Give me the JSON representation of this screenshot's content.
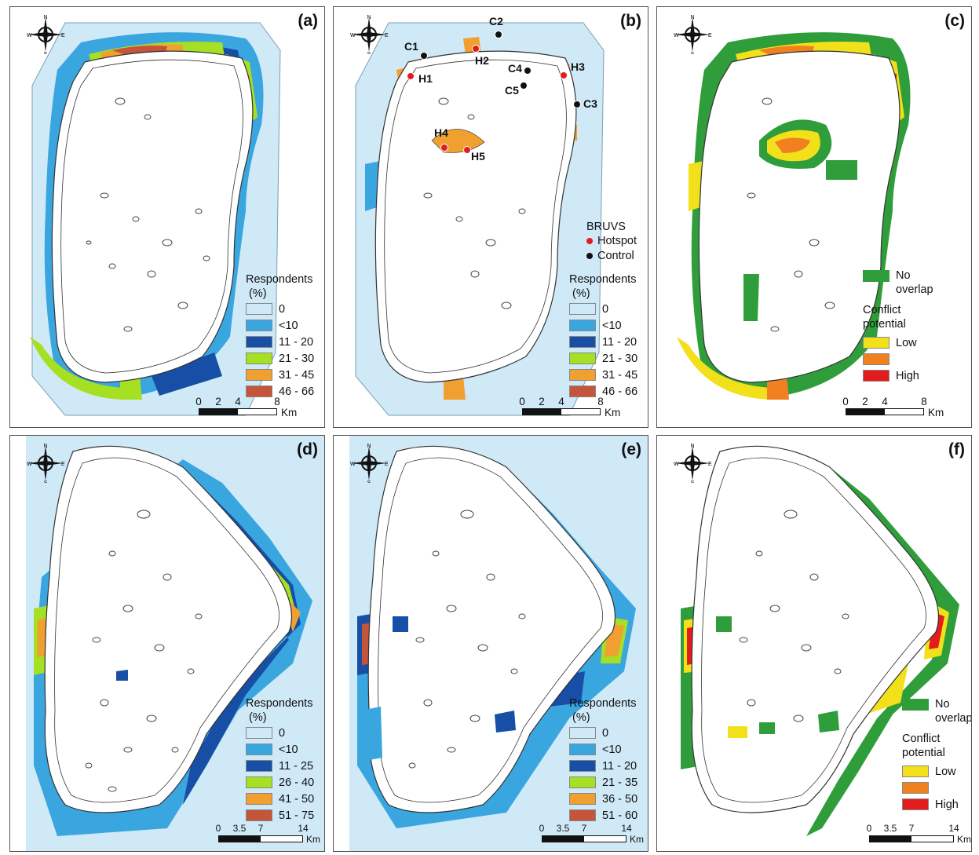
{
  "panels": {
    "a": {
      "label": "(a)"
    },
    "b": {
      "label": "(b)"
    },
    "c": {
      "label": "(c)"
    },
    "d": {
      "label": "(d)"
    },
    "e": {
      "label": "(e)"
    },
    "f": {
      "label": "(f)"
    }
  },
  "compass": {
    "n": "N",
    "s": "S",
    "e": "E",
    "w": "W"
  },
  "legend_a": {
    "title1": "Respondents",
    "title2": "(%)",
    "rows": [
      {
        "label": "0",
        "color": "#cfe9f7"
      },
      {
        "label": "<10",
        "color": "#3aa6e0"
      },
      {
        "label": "11 - 20",
        "color": "#174ea6"
      },
      {
        "label": "21 - 30",
        "color": "#a6e022"
      },
      {
        "label": "31 - 45",
        "color": "#f0a030"
      },
      {
        "label": "46 - 66",
        "color": "#c4553a"
      }
    ]
  },
  "legend_b": {
    "title1": "Respondents",
    "title2": "(%)",
    "rows": [
      {
        "label": "0",
        "color": "#cfe9f7"
      },
      {
        "label": "<10",
        "color": "#3aa6e0"
      },
      {
        "label": "11 - 20",
        "color": "#174ea6"
      },
      {
        "label": "21 - 30",
        "color": "#a6e022"
      },
      {
        "label": "31 - 45",
        "color": "#f0a030"
      },
      {
        "label": "46 - 66",
        "color": "#c4553a"
      }
    ]
  },
  "legend_d": {
    "title1": "Respondents",
    "title2": "(%)",
    "rows": [
      {
        "label": "0",
        "color": "#cfe9f7"
      },
      {
        "label": "<10",
        "color": "#3aa6e0"
      },
      {
        "label": "11 - 25",
        "color": "#174ea6"
      },
      {
        "label": "26 - 40",
        "color": "#a6e022"
      },
      {
        "label": "41 - 50",
        "color": "#f0a030"
      },
      {
        "label": "51 - 75",
        "color": "#c4553a"
      }
    ]
  },
  "legend_e": {
    "title1": "Respondents",
    "title2": "(%)",
    "rows": [
      {
        "label": "0",
        "color": "#cfe9f7"
      },
      {
        "label": "<10",
        "color": "#3aa6e0"
      },
      {
        "label": "11 - 20",
        "color": "#174ea6"
      },
      {
        "label": "21 - 35",
        "color": "#a6e022"
      },
      {
        "label": "36 - 50",
        "color": "#f0a030"
      },
      {
        "label": "51 - 60",
        "color": "#c4553a"
      }
    ]
  },
  "conflict_legend": {
    "no_overlap_1": "No",
    "no_overlap_2": "overlap",
    "no_overlap_color": "#2f9e3a",
    "title1": "Conflict",
    "title2": "potential",
    "low": "Low",
    "low_color": "#f2e01a",
    "mid_color": "#f08020",
    "high": "High",
    "high_color": "#e31b1b"
  },
  "bruvs": {
    "title": "BRUVS",
    "hotspot": "Hotspot",
    "hotspot_color": "#e31b1b",
    "control": "Control",
    "control_color": "#111111"
  },
  "sites": {
    "c1": "C1",
    "c2": "C2",
    "c3": "C3",
    "c4": "C4",
    "c5": "C5",
    "h1": "H1",
    "h2": "H2",
    "h3": "H3",
    "h4": "H4",
    "h5": "H5"
  },
  "scale_top": {
    "t0": "0",
    "t1": "2",
    "t2": "4",
    "t3": "8",
    "unit": "Km"
  },
  "scale_bottom": {
    "t0": "0",
    "t1": "3.5",
    "t2": "7",
    "t3": "14",
    "unit": "Km"
  }
}
